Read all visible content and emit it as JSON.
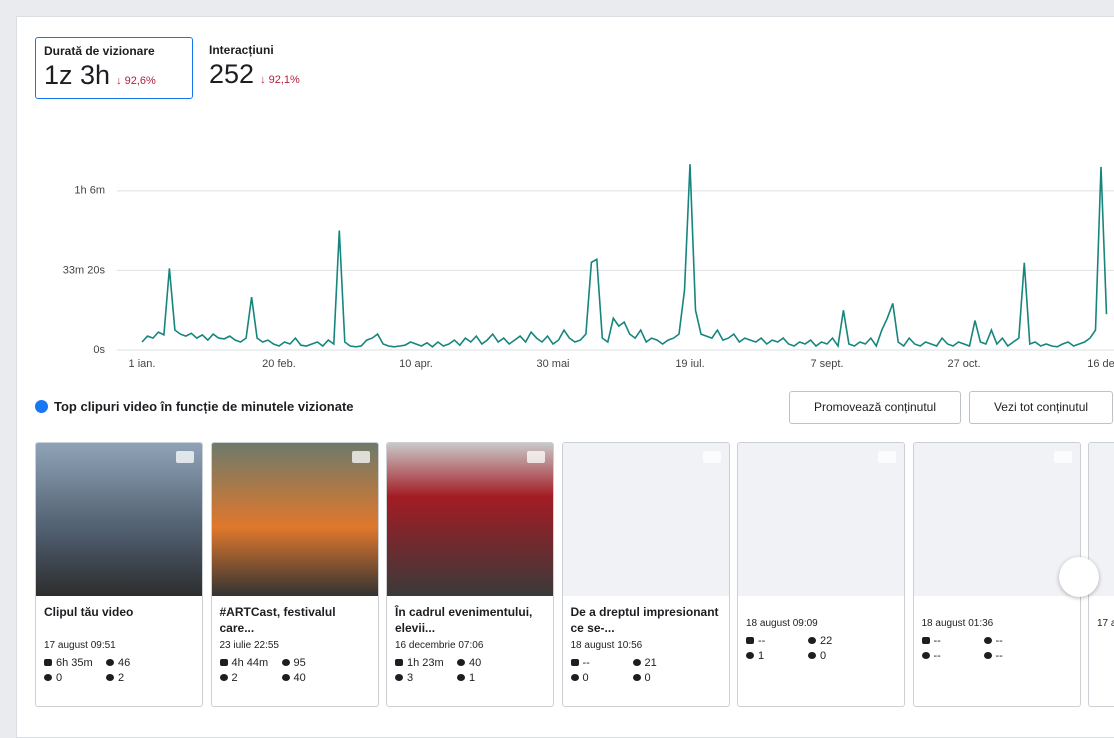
{
  "metrics": [
    {
      "label": "Durată de vizionare",
      "value": "1z 3h",
      "change": "↓ 92,6%"
    },
    {
      "label": "Interacțiuni",
      "value": "252",
      "change": "↓ 92,1%"
    }
  ],
  "chart_data": {
    "type": "line",
    "color": "#16857e",
    "grid": true,
    "ylim": [
      0,
      4900
    ],
    "yticks": [
      {
        "value": 0,
        "label": "0s"
      },
      {
        "value": 2000,
        "label": "33m 20s"
      },
      {
        "value": 4000,
        "label": "1h 6m"
      }
    ],
    "categories": [
      "1 ian.",
      null,
      null,
      null,
      null,
      null,
      null,
      null,
      null,
      null,
      null,
      null,
      null,
      null,
      null,
      null,
      null,
      null,
      null,
      null,
      null,
      null,
      null,
      null,
      null,
      "20 feb.",
      null,
      null,
      null,
      null,
      null,
      null,
      null,
      null,
      null,
      null,
      null,
      null,
      null,
      null,
      null,
      null,
      null,
      null,
      null,
      null,
      null,
      null,
      null,
      null,
      "10 apr.",
      null,
      null,
      null,
      null,
      null,
      null,
      null,
      null,
      null,
      null,
      null,
      null,
      null,
      null,
      null,
      null,
      null,
      null,
      null,
      null,
      null,
      null,
      null,
      null,
      "30 mai",
      null,
      null,
      null,
      null,
      null,
      null,
      null,
      null,
      null,
      null,
      null,
      null,
      null,
      null,
      null,
      null,
      null,
      null,
      null,
      null,
      null,
      null,
      null,
      null,
      "19 iul.",
      null,
      null,
      null,
      null,
      null,
      null,
      null,
      null,
      null,
      null,
      null,
      null,
      null,
      null,
      null,
      null,
      null,
      null,
      null,
      null,
      null,
      null,
      null,
      null,
      "7 sept.",
      null,
      null,
      null,
      null,
      null,
      null,
      null,
      null,
      null,
      null,
      null,
      null,
      null,
      null,
      null,
      null,
      null,
      null,
      null,
      null,
      null,
      null,
      null,
      null,
      "27 oct.",
      null,
      null,
      null,
      null,
      null,
      null,
      null,
      null,
      null,
      null,
      null,
      null,
      null,
      null,
      null,
      null,
      null,
      null,
      null,
      null,
      null,
      null,
      null,
      null,
      "16 de",
      null
    ],
    "values": [
      200,
      350,
      300,
      450,
      380,
      2050,
      500,
      400,
      350,
      420,
      300,
      380,
      250,
      400,
      300,
      280,
      350,
      250,
      200,
      300,
      1330,
      300,
      200,
      250,
      150,
      100,
      200,
      150,
      300,
      120,
      100,
      150,
      200,
      100,
      250,
      150,
      3000,
      200,
      100,
      80,
      100,
      250,
      300,
      400,
      150,
      100,
      80,
      100,
      120,
      200,
      150,
      100,
      180,
      80,
      200,
      100,
      150,
      250,
      120,
      300,
      200,
      350,
      150,
      250,
      400,
      200,
      300,
      150,
      250,
      350,
      200,
      450,
      300,
      200,
      350,
      150,
      250,
      500,
      300,
      200,
      250,
      400,
      2200,
      2280,
      300,
      200,
      800,
      600,
      700,
      400,
      300,
      500,
      200,
      300,
      250,
      150,
      250,
      300,
      400,
      1500,
      4670,
      1000,
      400,
      350,
      300,
      500,
      250,
      300,
      400,
      200,
      300,
      250,
      200,
      300,
      150,
      250,
      200,
      300,
      150,
      100,
      200,
      150,
      250,
      100,
      200,
      150,
      300,
      100,
      1000,
      150,
      100,
      200,
      150,
      300,
      100,
      500,
      800,
      1170,
      200,
      100,
      300,
      150,
      100,
      200,
      150,
      100,
      300,
      150,
      100,
      200,
      150,
      100,
      740,
      200,
      150,
      500,
      150,
      300,
      100,
      200,
      300,
      2190,
      150,
      200,
      100,
      150,
      100,
      80,
      150,
      200,
      100,
      150,
      200,
      300,
      500,
      4600,
      900
    ]
  },
  "section": {
    "title": "Top clipuri video în funcție de minutele vizionate",
    "buttons": [
      "Promovează conținutul",
      "Vezi tot conținutul"
    ]
  },
  "videos": [
    {
      "title": "Clipul tău video",
      "date": "17 august 09:51",
      "views": "6h 35m",
      "likes": "46",
      "comments": "0",
      "shares": "2"
    },
    {
      "title": "#ARTCast, festivalul care...",
      "date": "23 iulie 22:55",
      "views": "4h 44m",
      "likes": "95",
      "comments": "2",
      "shares": "40"
    },
    {
      "title": "În cadrul evenimentului, elevii...",
      "date": "16 decembrie 07:06",
      "views": "1h 23m",
      "likes": "40",
      "comments": "3",
      "shares": "1"
    },
    {
      "title": "De a dreptul impresionant ce se-...",
      "date": "18 august 10:56",
      "views": "--",
      "likes": "21",
      "comments": "0",
      "shares": "0"
    },
    {
      "date": "18 august 09:09",
      "views": "--",
      "likes": "22",
      "comments": "1",
      "shares": "0"
    },
    {
      "date": "18 august 01:36",
      "views": "--",
      "likes": "--",
      "comments": "--",
      "shares": "--"
    },
    {
      "date": "17 a"
    }
  ]
}
